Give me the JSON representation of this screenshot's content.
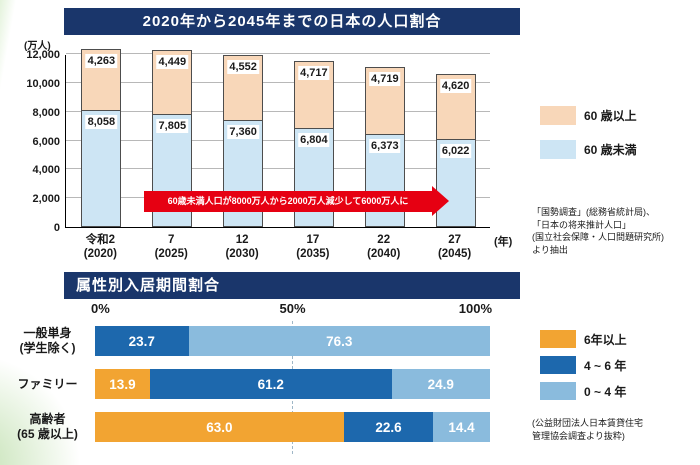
{
  "chart_data": [
    {
      "type": "bar",
      "stacked": true,
      "orientation": "vertical",
      "title": "2020年から2045年までの日本の人口割合",
      "ylabel": "(万人)",
      "xlabel": "(年)",
      "categories": [
        "令和2\n(2020)",
        "7\n(2025)",
        "12\n(2030)",
        "17\n(2035)",
        "22\n(2040)",
        "27\n(2045)"
      ],
      "series": [
        {
          "name": "60 歳未満",
          "color": "#CDE5F4",
          "values": [
            8058,
            7805,
            7360,
            6804,
            6373,
            6022
          ]
        },
        {
          "name": "60 歳以上",
          "color": "#F8D7B9",
          "values": [
            4263,
            4449,
            4552,
            4717,
            4719,
            4620
          ]
        }
      ],
      "ylim": [
        0,
        12000
      ],
      "ytick_step": 2000,
      "grid": true,
      "legend_position": "right",
      "annotation": {
        "text": "60歳未満人口が8000万人から2000万人減少して6000万人に",
        "color": "#E60012"
      },
      "source": [
        "「国勢調査」(総務省統計局)、",
        "「日本の将来推計人口」",
        "(国立社会保障・人口問題研究所)",
        "より抽出"
      ]
    },
    {
      "type": "bar",
      "stacked": true,
      "orientation": "horizontal",
      "title": "属性別入居期間割合",
      "categories": [
        "一般単身\n(学生除く)",
        "ファミリー",
        "高齢者\n(65 歳以上)"
      ],
      "series": [
        {
          "name": "6年以上",
          "color": "#F2A432",
          "values": [
            0,
            13.9,
            63.0
          ]
        },
        {
          "name": "4 ~ 6 年",
          "color": "#1D68AD",
          "values": [
            23.7,
            61.2,
            22.6
          ]
        },
        {
          "name": "0 ~ 4 年",
          "color": "#8ABBDD",
          "values": [
            76.3,
            24.9,
            14.4
          ]
        }
      ],
      "xlim": [
        0,
        100
      ],
      "xticks": [
        "0%",
        "50%",
        "100%"
      ],
      "grid": true,
      "legend_position": "right",
      "source": [
        "(公益財団法人日本賃貸住宅",
        "管理協会調査より抜粋)"
      ]
    }
  ],
  "theme": {
    "title_bar_color": "#1A366B",
    "title_text_color": "#FFFFFF",
    "arrow_color": "#E60012",
    "accent_green": "#CDE8BD"
  }
}
